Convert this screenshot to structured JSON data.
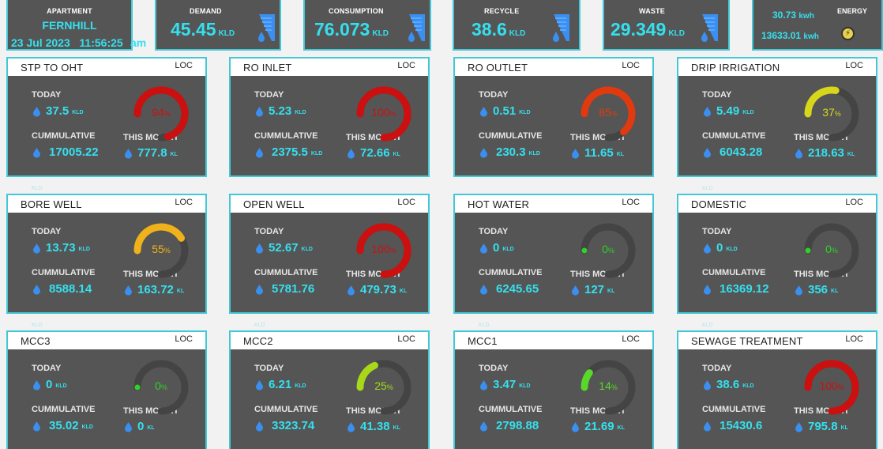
{
  "header": {
    "apartment": {
      "label": "APARTMENT",
      "name": "FERNHILL",
      "date": "23 Jul 2023",
      "time": "11:56:25",
      "ampm": "am"
    },
    "demand": {
      "label": "DEMAND",
      "value": "45.45",
      "unit": "KLD",
      "icon": "water-tap-icon"
    },
    "consumption": {
      "label": "CONSUMPTION",
      "value": "76.073",
      "unit": "KLD",
      "icon": "water-tap-icon"
    },
    "recycle": {
      "label": "RECYCLE",
      "value": "38.6",
      "unit": "KLD",
      "icon": "water-tap-icon"
    },
    "waste": {
      "label": "WASTE",
      "value": "29.349",
      "unit": "KLD",
      "icon": "water-tap-icon"
    },
    "energy": {
      "label": "ENERGY",
      "value1": "30.73",
      "unit1": "kwh",
      "value2": "13633.01",
      "unit2": "kwh",
      "icon": "energy-meter-icon"
    }
  },
  "common": {
    "loc": "LOC",
    "today_label": "TODAY",
    "cumulative_label": "CUMMULATIVE",
    "month_label": "THIS MONTH",
    "kld": "KLD",
    "kl": "KL",
    "percent": "%"
  },
  "colors": {
    "accent": "#35e0ee",
    "card_bg": "#555555",
    "border": "#43c8d8",
    "track": "#444444"
  },
  "cards": [
    {
      "title": "STP TO OHT",
      "today": "37.5",
      "cumulative": "17005.22",
      "cumulative_unit": "",
      "month": "777.8",
      "gauge_percent": 94,
      "gauge_color": "#cc1010",
      "ghost": "KLD"
    },
    {
      "title": "RO INLET",
      "today": "5.23",
      "cumulative": "2375.5",
      "cumulative_unit": "KLD",
      "month": "72.66",
      "gauge_percent": 100,
      "gauge_color": "#cc1010",
      "ghost": ""
    },
    {
      "title": "RO OUTLET",
      "today": "0.51",
      "cumulative": "230.3",
      "cumulative_unit": "KLD",
      "month": "11.65",
      "gauge_percent": 85,
      "gauge_color": "#e03a10",
      "ghost": ""
    },
    {
      "title": "DRIP IRRIGATION",
      "today": "5.49",
      "cumulative": "6043.28",
      "cumulative_unit": "",
      "month": "218.63",
      "gauge_percent": 37,
      "gauge_color": "#d8d61a",
      "ghost": "KLD"
    },
    {
      "title": "BORE WELL",
      "today": "13.73",
      "cumulative": "8588.14",
      "cumulative_unit": "",
      "month": "163.72",
      "gauge_percent": 55,
      "gauge_color": "#f0b21a",
      "ghost": "KLD"
    },
    {
      "title": "OPEN WELL",
      "today": "52.67",
      "cumulative": "5781.76",
      "cumulative_unit": "",
      "month": "479.73",
      "gauge_percent": 100,
      "gauge_color": "#cc1010",
      "ghost": "KLD"
    },
    {
      "title": "HOT WATER",
      "today": "0",
      "cumulative": "6245.65",
      "cumulative_unit": "",
      "month": "127",
      "gauge_percent": 0,
      "gauge_color": "#2fd12a",
      "ghost": "KLD"
    },
    {
      "title": "DOMESTIC",
      "today": "0",
      "cumulative": "16369.12",
      "cumulative_unit": "",
      "month": "356",
      "gauge_percent": 0,
      "gauge_color": "#2fd12a",
      "ghost": "KLD"
    },
    {
      "title": "MCC3",
      "today": "0",
      "cumulative": "35.02",
      "cumulative_unit": "KLD",
      "month": "0",
      "gauge_percent": 0,
      "gauge_color": "#2fd12a",
      "ghost": ""
    },
    {
      "title": "MCC2",
      "today": "6.21",
      "cumulative": "3323.74",
      "cumulative_unit": "",
      "month": "41.38",
      "gauge_percent": 25,
      "gauge_color": "#a8d81a",
      "ghost": ""
    },
    {
      "title": "MCC1",
      "today": "3.47",
      "cumulative": "2798.88",
      "cumulative_unit": "",
      "month": "21.69",
      "gauge_percent": 14,
      "gauge_color": "#58d82a",
      "ghost": ""
    },
    {
      "title": "SEWAGE TREATMENT",
      "today": "38.6",
      "cumulative": "15430.6",
      "cumulative_unit": "",
      "month": "795.8",
      "gauge_percent": 100,
      "gauge_color": "#cc1010",
      "ghost": ""
    }
  ]
}
